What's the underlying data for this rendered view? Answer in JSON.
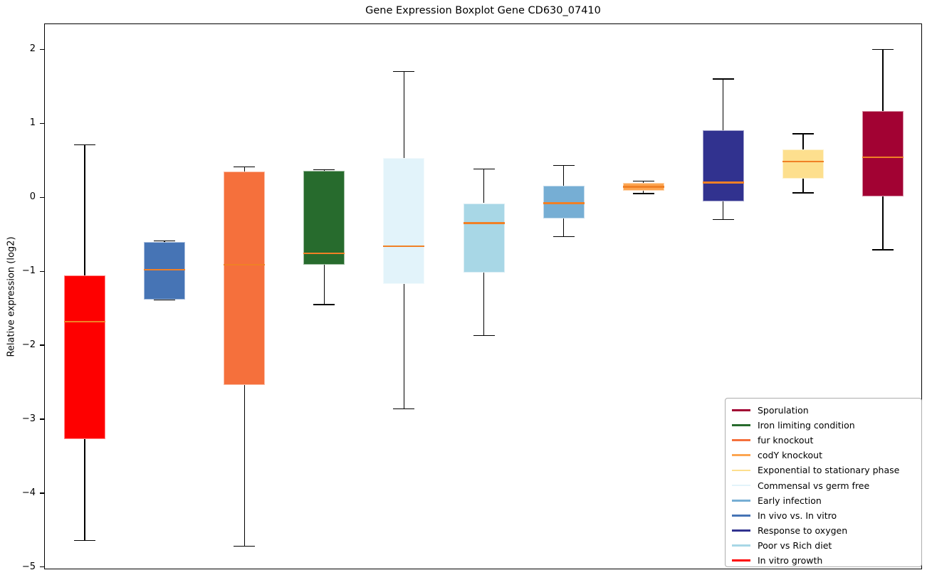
{
  "chart_data": {
    "type": "boxplot",
    "title": "Gene Expression Boxplot Gene CD630_07410",
    "ylabel": "Relative expression (log2)",
    "ylim": [
      -5.03,
      2.35
    ],
    "yticks": [
      2,
      1,
      0,
      -1,
      -2,
      -3,
      -4,
      -5
    ],
    "ytick_labels": [
      "2",
      "1",
      "0",
      "−1",
      "−2",
      "−3",
      "−4",
      "−5"
    ],
    "grid": false,
    "median_color": "#f08026",
    "whisker_color": "#000000",
    "legend_position": "lower right",
    "series": [
      {
        "name": "In vitro growth",
        "color": "#fe0000",
        "whisker_low": -4.63,
        "q1": -3.26,
        "median": -1.67,
        "q3": -1.05,
        "whisker_high": 0.72
      },
      {
        "name": "In vivo vs. In vitro",
        "color": "#4674b5",
        "whisker_low": -1.38,
        "q1": -1.37,
        "median": -0.97,
        "q3": -0.59,
        "whisker_high": -0.58
      },
      {
        "name": "fur knockout",
        "color": "#f5703c",
        "whisker_low": -4.71,
        "q1": -2.53,
        "median": -0.9,
        "q3": 0.36,
        "whisker_high": 0.42
      },
      {
        "name": "Iron limiting condition",
        "color": "#276b2d",
        "whisker_low": -1.44,
        "q1": -0.9,
        "median": -0.75,
        "q3": 0.37,
        "whisker_high": 0.38
      },
      {
        "name": "Commensal vs germ free",
        "color": "#e2f3fa",
        "whisker_low": -2.85,
        "q1": -1.16,
        "median": -0.65,
        "q3": 0.54,
        "whisker_high": 1.71
      },
      {
        "name": "Poor vs Rich diet",
        "color": "#a8d7e6",
        "whisker_low": -1.86,
        "q1": -1.01,
        "median": -0.34,
        "q3": -0.07,
        "whisker_high": 0.39
      },
      {
        "name": "Early infection",
        "color": "#76aed4",
        "whisker_low": -0.52,
        "q1": -0.28,
        "median": -0.07,
        "q3": 0.17,
        "whisker_high": 0.44
      },
      {
        "name": "codY knockout",
        "color": "#fca551",
        "whisker_low": 0.06,
        "q1": 0.1,
        "median": 0.15,
        "q3": 0.2,
        "whisker_high": 0.23
      },
      {
        "name": "Response to oxygen",
        "color": "#31328f",
        "whisker_low": -0.29,
        "q1": -0.05,
        "median": 0.21,
        "q3": 0.92,
        "whisker_high": 1.61
      },
      {
        "name": "Exponential to stationary phase",
        "color": "#fddf8e",
        "whisker_low": 0.07,
        "q1": 0.26,
        "median": 0.49,
        "q3": 0.66,
        "whisker_high": 0.87
      },
      {
        "name": "Sporulation",
        "color": "#a20233",
        "whisker_low": -0.7,
        "q1": 0.02,
        "median": 0.55,
        "q3": 1.18,
        "whisker_high": 2.01
      }
    ],
    "legend": [
      {
        "label": "Sporulation",
        "color": "#a20233"
      },
      {
        "label": "Iron limiting condition",
        "color": "#276b2d"
      },
      {
        "label": "fur knockout",
        "color": "#f5703c"
      },
      {
        "label": "codY knockout",
        "color": "#fca551"
      },
      {
        "label": "Exponential to stationary phase",
        "color": "#fddf8e"
      },
      {
        "label": "Commensal vs germ free",
        "color": "#e2f3fa"
      },
      {
        "label": "Early infection",
        "color": "#76aed4"
      },
      {
        "label": "In vivo vs. In vitro",
        "color": "#4674b5"
      },
      {
        "label": "Response to oxygen",
        "color": "#31328f"
      },
      {
        "label": "Poor vs Rich diet",
        "color": "#a8d7e6"
      },
      {
        "label": "In vitro growth",
        "color": "#fe0000"
      }
    ]
  }
}
